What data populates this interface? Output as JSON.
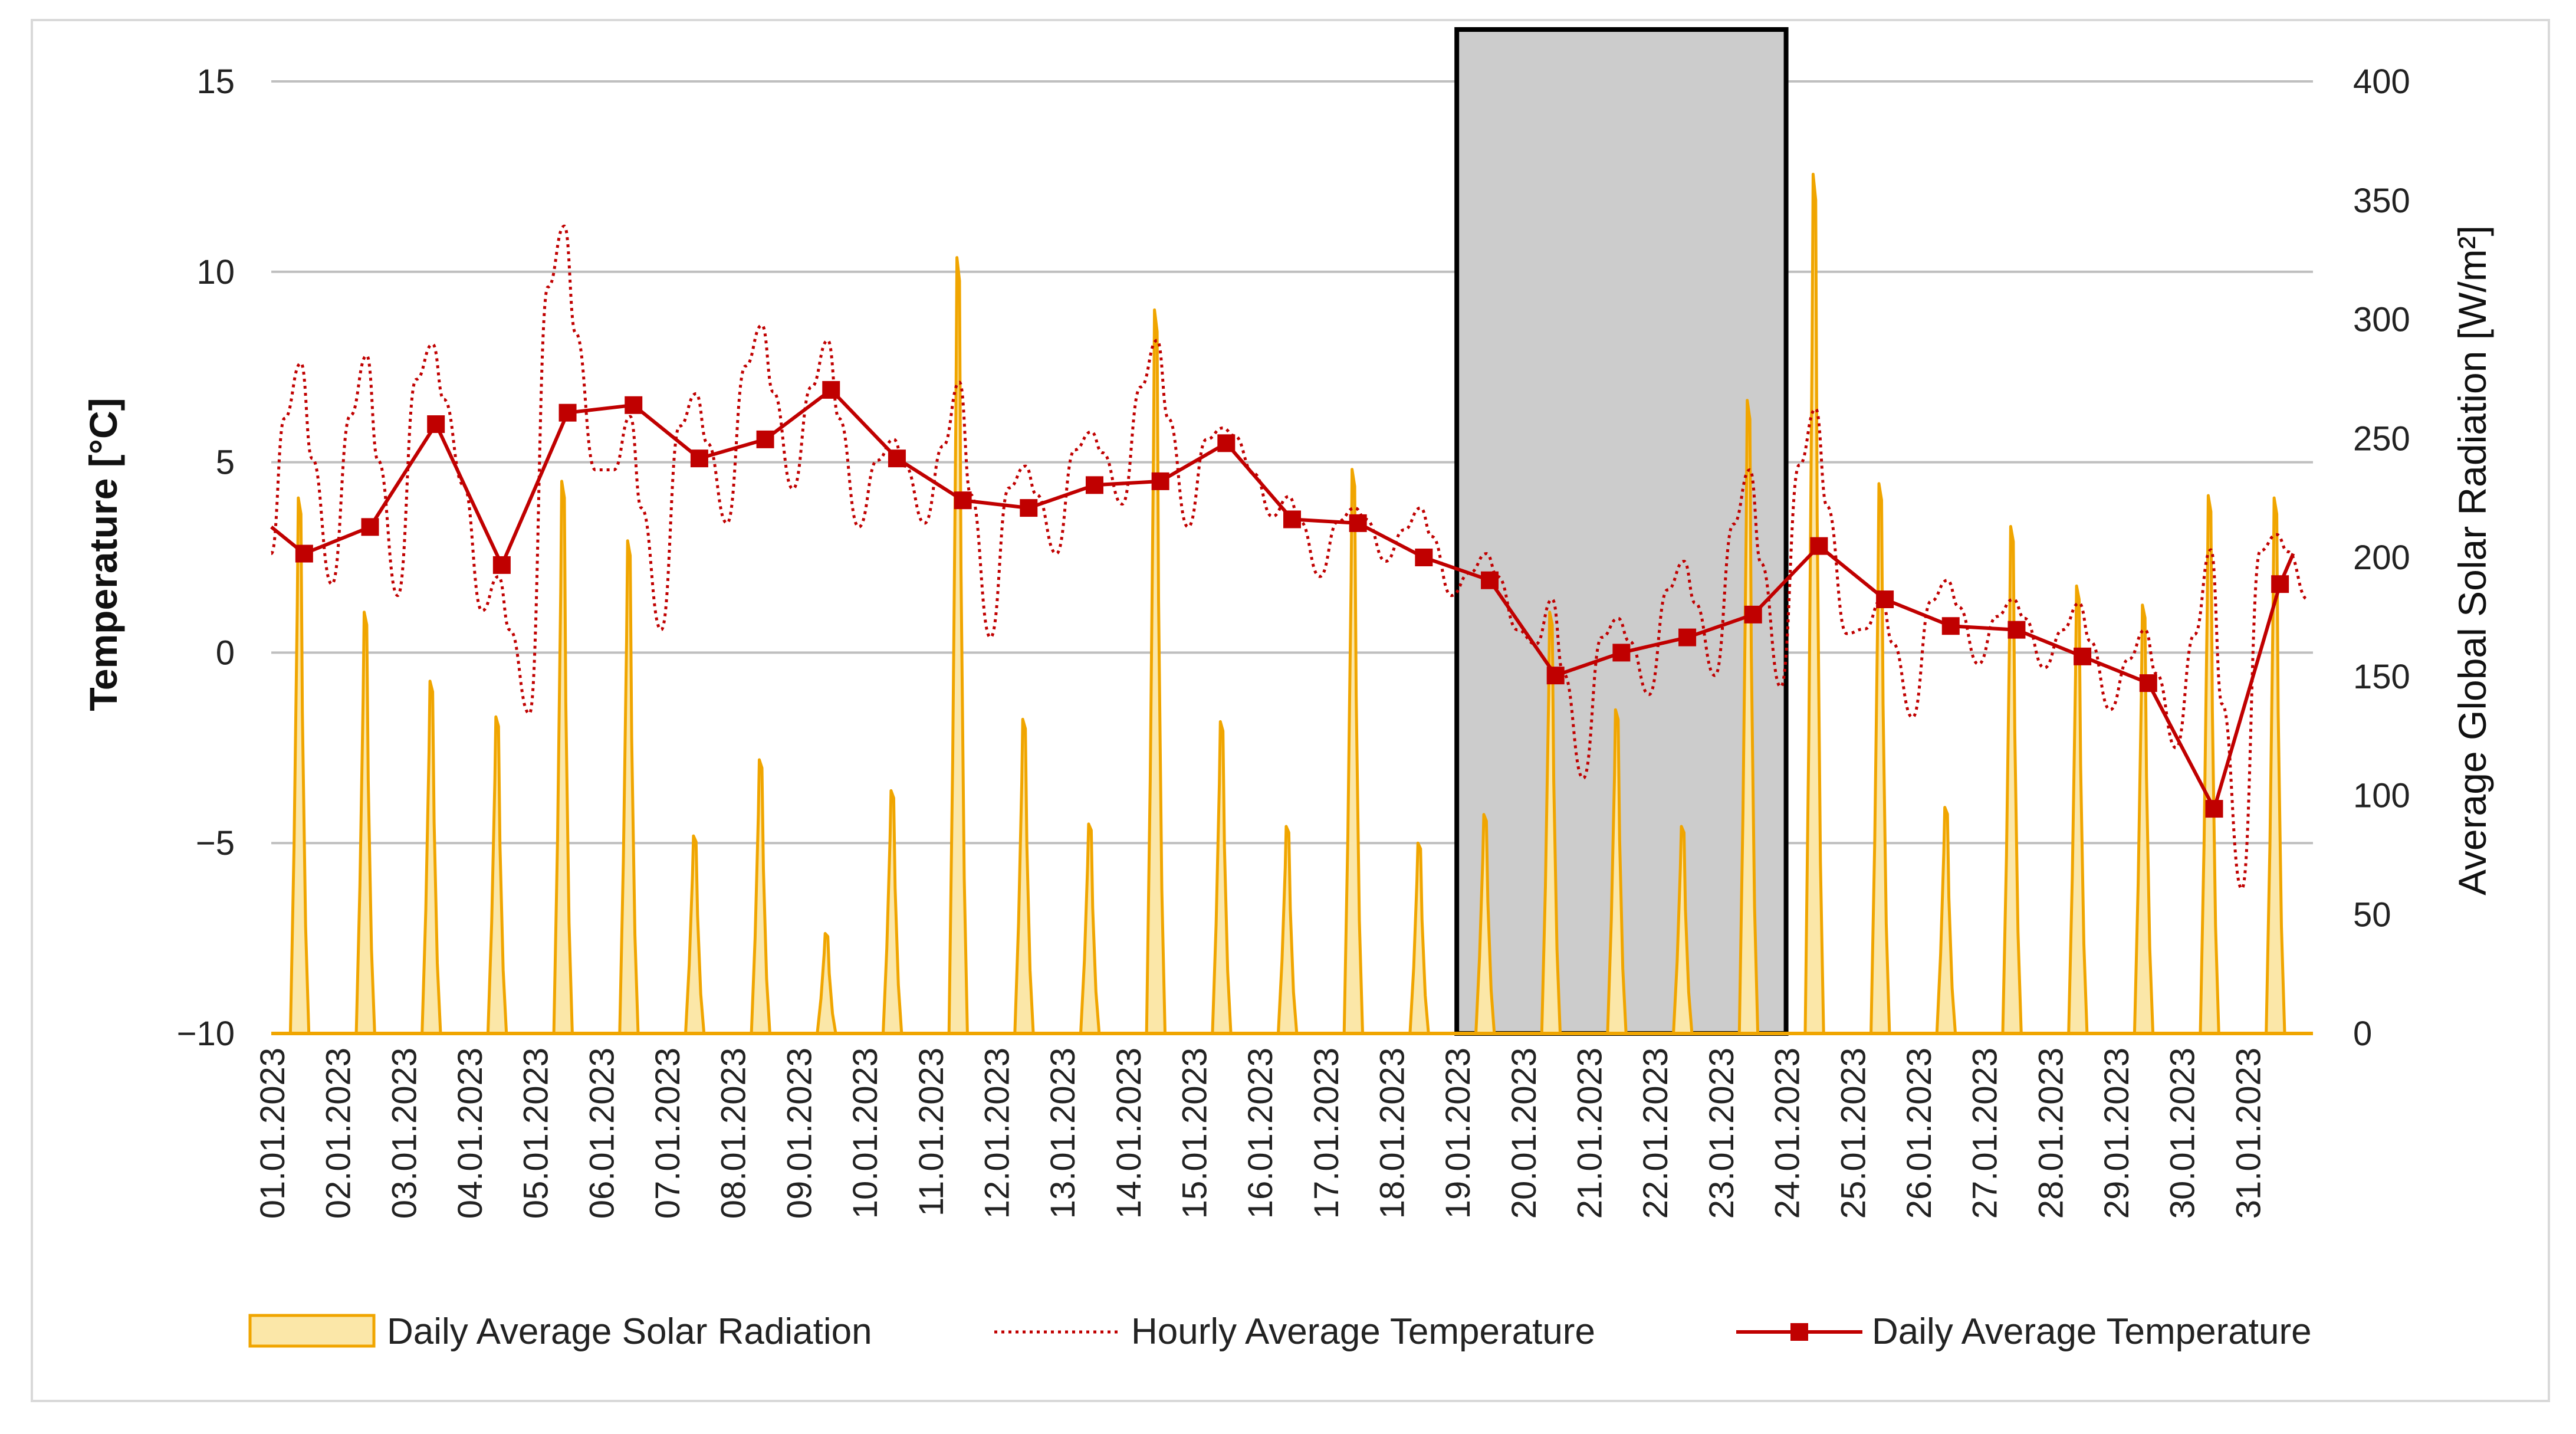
{
  "chart_data": {
    "type": "combo",
    "y_left": {
      "label": "Temperature [°C]",
      "ylim": [
        -10,
        15
      ],
      "ticks": [
        15,
        10,
        5,
        0,
        -5,
        -10
      ],
      "tick_labels": [
        "15",
        "10",
        "5",
        "0",
        "−5",
        "−10"
      ]
    },
    "y_right": {
      "label": "Average Global Solar Radiation [W/m²]",
      "ylim": [
        0,
        400
      ],
      "ticks": [
        400,
        350,
        300,
        250,
        200,
        150,
        100,
        50,
        0
      ],
      "tick_labels": [
        "400",
        "350",
        "300",
        "250",
        "200",
        "150",
        "100",
        "50",
        "0"
      ]
    },
    "x_labels": [
      "01.01.2023",
      "02.01.2023",
      "03.01.2023",
      "04.01.2023",
      "05.01.2023",
      "06.01.2023",
      "07.01.2023",
      "08.01.2023",
      "09.01.2023",
      "10.01.2023",
      "11.01.2023",
      "12.01.2023",
      "13.01.2023",
      "14.01.2023",
      "15.01.2023",
      "16.01.2023",
      "17.01.2023",
      "18.01.2023",
      "19.01.2023",
      "20.01.2023",
      "21.01.2023",
      "22.01.2023",
      "23.01.2023",
      "24.01.2023",
      "25.01.2023",
      "26.01.2023",
      "27.01.2023",
      "28.01.2023",
      "29.01.2023",
      "30.01.2023",
      "31.01.2023"
    ],
    "highlight_days": [
      19,
      23
    ],
    "series": [
      {
        "name": "Daily Average Solar Radiation",
        "type": "area",
        "axis": "right",
        "color": "#f0a500",
        "fill": "#fbe7a8",
        "daily_peaks": [
          225,
          177,
          148,
          133,
          232,
          207,
          83,
          115,
          42,
          102,
          326,
          132,
          88,
          304,
          131,
          87,
          237,
          80,
          92,
          177,
          136,
          87,
          266,
          361,
          231,
          95,
          213,
          188,
          180,
          226,
          225
        ]
      },
      {
        "name": "Hourly Average Temperature",
        "type": "line",
        "axis": "left",
        "color": "#c00000",
        "style": "dotted",
        "day_max": [
          7.6,
          7.8,
          8.1,
          2.0,
          11.2,
          6.2,
          6.8,
          8.6,
          8.2,
          5.6,
          7.1,
          4.9,
          5.8,
          8.2,
          5.9,
          4.1,
          3.8,
          3.8,
          2.6,
          1.4,
          0.9,
          2.4,
          4.8,
          6.4,
          1.4,
          1.9,
          1.4,
          1.3,
          0.6,
          2.7,
          3.1
        ],
        "day_min": [
          1.8,
          1.5,
          4.4,
          -1.6,
          4.8,
          0.6,
          3.4,
          4.3,
          3.3,
          3.4,
          0.4,
          2.6,
          3.9,
          3.3,
          4.7,
          2.0,
          2.4,
          1.5,
          0.6,
          -3.3,
          -1.1,
          -0.6,
          -0.9,
          0.5,
          -1.7,
          -0.3,
          -0.4,
          -1.5,
          -2.5,
          -6.2,
          1.4
        ]
      },
      {
        "name": "Daily Average Temperature",
        "type": "line",
        "axis": "left",
        "color": "#c00000",
        "marker": "square",
        "values": [
          2.6,
          3.3,
          6.0,
          2.3,
          6.3,
          6.5,
          5.1,
          5.6,
          6.9,
          5.1,
          4.0,
          3.8,
          4.4,
          4.5,
          5.5,
          3.5,
          3.4,
          2.5,
          1.9,
          -0.6,
          0.0,
          0.4,
          1.0,
          2.8,
          1.4,
          0.7,
          0.6,
          -0.1,
          -0.8,
          -4.1,
          1.8
        ]
      }
    ],
    "legend": [
      "Daily Average Solar Radiation",
      "Hourly Average Temperature",
      "Daily Average Temperature"
    ],
    "legend_position": "bottom",
    "grid": true
  }
}
